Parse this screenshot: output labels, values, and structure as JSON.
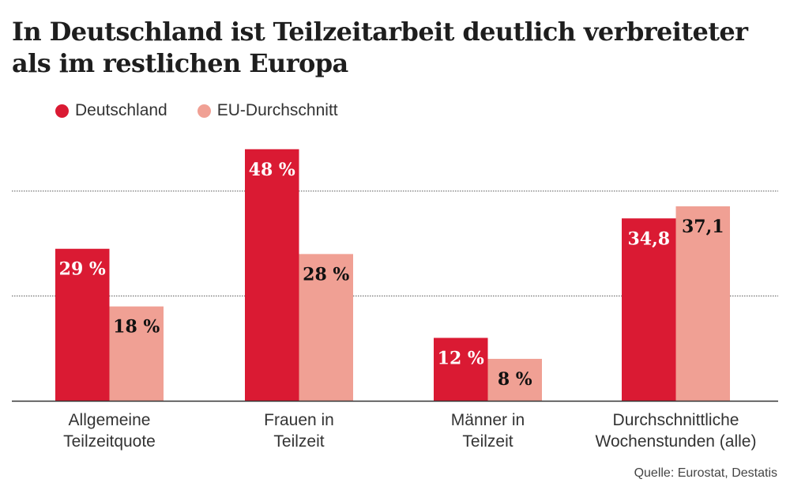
{
  "chart_data": {
    "type": "bar",
    "title": "In Deutschland ist Teilzeitarbeit deutlich verbreiteter als im restlichen Europa",
    "categories": [
      [
        "Allgemeine",
        "Teilzeitquote"
      ],
      [
        "Frauen in",
        "Teilzeit"
      ],
      [
        "Männer in",
        "Teilzeit"
      ],
      [
        "Durchschnittliche",
        "Wochenstunden (alle)"
      ]
    ],
    "series": [
      {
        "name": "Deutschland",
        "color": "#da1a33",
        "label_color": "#ffffff",
        "values": [
          29,
          48,
          12,
          34.8
        ],
        "labels": [
          "29 %",
          "48 %",
          "12 %",
          "34,8"
        ]
      },
      {
        "name": "EU-Durchschnitt",
        "color": "#f0a094",
        "label_color": "#111111",
        "values": [
          18,
          28,
          8,
          37.1
        ],
        "labels": [
          "18 %",
          "28 %",
          "8 %",
          "37,1"
        ]
      }
    ],
    "ylim": [
      0,
      48
    ],
    "gridlines": [
      20,
      40
    ],
    "grid": "dotted horizontal",
    "legend_position": "top-left",
    "source": "Quelle: Eurostat, Destatis"
  }
}
